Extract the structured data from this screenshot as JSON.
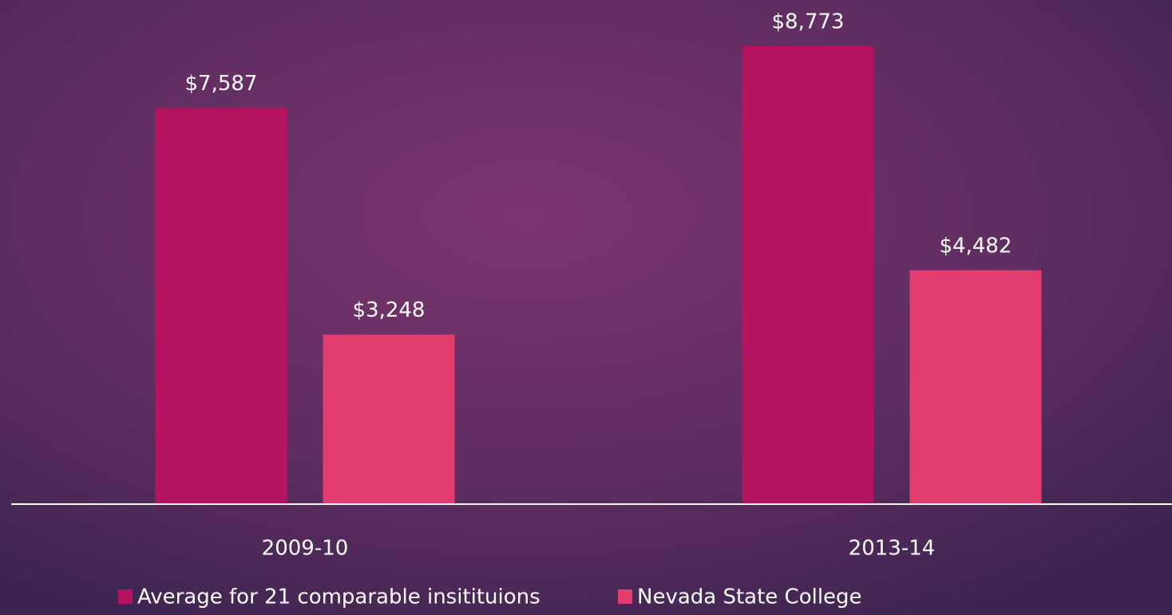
{
  "chart_data": {
    "type": "bar",
    "categories": [
      "2009-10",
      "2013-14"
    ],
    "series": [
      {
        "name": "Average for 21 comparable insitituions",
        "color": "#b5135f",
        "values": [
          7587,
          8773
        ],
        "value_labels": [
          "$7,587",
          "$8,773"
        ]
      },
      {
        "name": "Nevada State College",
        "color": "#e23d6e",
        "values": [
          3248,
          4482
        ],
        "value_labels": [
          "$3,248",
          "$4,482"
        ]
      }
    ],
    "legend": "bottom"
  }
}
